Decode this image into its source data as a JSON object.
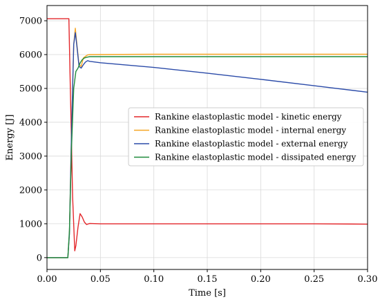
{
  "chart_data": {
    "type": "line",
    "xlabel": "Time [s]",
    "ylabel": "Energy [J]",
    "xlim": [
      0.0,
      0.3
    ],
    "ylim": [
      -350,
      7450
    ],
    "x_ticks": [
      "0.00",
      "0.05",
      "0.10",
      "0.15",
      "0.20",
      "0.25",
      "0.30"
    ],
    "y_ticks": [
      "0",
      "1000",
      "2000",
      "3000",
      "4000",
      "5000",
      "6000",
      "7000"
    ],
    "grid": true,
    "legend_position": "center-right",
    "series": [
      {
        "name": "Rankine elastoplastic model - kinetic energy",
        "color": "#e3262a",
        "x": [
          0.0,
          0.0205,
          0.022,
          0.024,
          0.026,
          0.027,
          0.029,
          0.031,
          0.033,
          0.035,
          0.037,
          0.04,
          0.05,
          0.1,
          0.15,
          0.2,
          0.25,
          0.3
        ],
        "y": [
          7060,
          7060,
          4800,
          1800,
          200,
          350,
          900,
          1300,
          1200,
          1050,
          980,
          1010,
          1000,
          1000,
          1000,
          1000,
          1000,
          990
        ]
      },
      {
        "name": "Rankine elastoplastic model - internal energy",
        "color": "#f5a623",
        "x": [
          0.0,
          0.0195,
          0.021,
          0.023,
          0.025,
          0.0265,
          0.028,
          0.03,
          0.032,
          0.034,
          0.036,
          0.038,
          0.04,
          0.1,
          0.2,
          0.3
        ],
        "y": [
          0,
          0,
          700,
          3800,
          6300,
          6780,
          6300,
          5700,
          5650,
          5900,
          5950,
          5990,
          6000,
          6010,
          6010,
          6010
        ]
      },
      {
        "name": "Rankine elastoplastic model - external energy",
        "color": "#2a4aa8",
        "x": [
          0.0,
          0.0195,
          0.021,
          0.023,
          0.025,
          0.0265,
          0.028,
          0.03,
          0.032,
          0.034,
          0.036,
          0.038,
          0.04,
          0.05,
          0.1,
          0.15,
          0.2,
          0.25,
          0.3
        ],
        "y": [
          0,
          0,
          700,
          3800,
          6300,
          6650,
          6250,
          5650,
          5600,
          5700,
          5780,
          5820,
          5800,
          5760,
          5620,
          5450,
          5270,
          5080,
          4890
        ]
      },
      {
        "name": "Rankine elastoplastic model - dissipated energy",
        "color": "#1f8a3b",
        "x": [
          0.0,
          0.0195,
          0.021,
          0.023,
          0.025,
          0.027,
          0.029,
          0.031,
          0.033,
          0.035,
          0.037,
          0.04,
          0.1,
          0.2,
          0.3
        ],
        "y": [
          0,
          0,
          800,
          3300,
          5000,
          5500,
          5600,
          5750,
          5850,
          5900,
          5920,
          5940,
          5940,
          5940,
          5940
        ]
      }
    ]
  }
}
